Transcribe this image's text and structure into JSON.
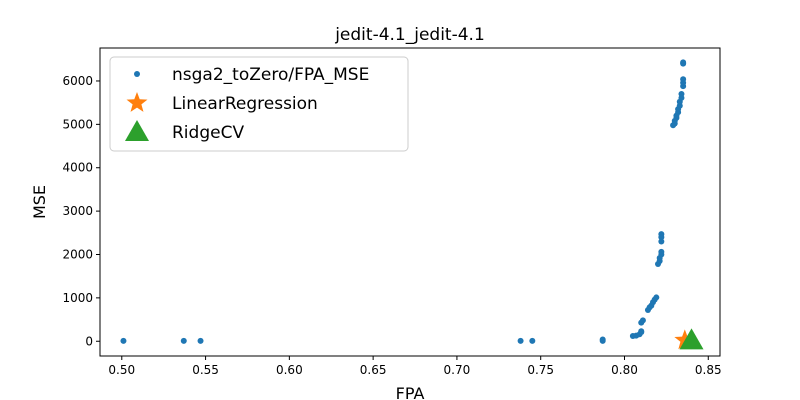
{
  "chart_data": {
    "type": "scatter",
    "title": "jedit-4.1_jedit-4.1",
    "xlabel": "FPA",
    "ylabel": "MSE",
    "xlim": [
      0.487,
      0.857
    ],
    "ylim": [
      -340,
      6760
    ],
    "xticks": [
      0.5,
      0.55,
      0.6,
      0.65,
      0.7,
      0.75,
      0.8,
      0.85
    ],
    "xtick_labels": [
      "0.50",
      "0.55",
      "0.60",
      "0.65",
      "0.70",
      "0.75",
      "0.80",
      "0.85"
    ],
    "yticks": [
      0,
      1000,
      2000,
      3000,
      4000,
      5000,
      6000
    ],
    "ytick_labels": [
      "0",
      "1000",
      "2000",
      "3000",
      "4000",
      "5000",
      "6000"
    ],
    "grid": false,
    "legend_position": "top-left",
    "series": [
      {
        "name": "nsga2_toZero/FPA_MSE",
        "marker": "circle",
        "color": "#1f77b4",
        "points": [
          [
            0.501,
            10
          ],
          [
            0.537,
            10
          ],
          [
            0.547,
            10
          ],
          [
            0.738,
            10
          ],
          [
            0.745,
            10
          ],
          [
            0.787,
            10
          ],
          [
            0.787,
            40
          ],
          [
            0.805,
            120
          ],
          [
            0.807,
            130
          ],
          [
            0.809,
            160
          ],
          [
            0.81,
            210
          ],
          [
            0.81,
            230
          ],
          [
            0.81,
            430
          ],
          [
            0.811,
            480
          ],
          [
            0.814,
            720
          ],
          [
            0.815,
            780
          ],
          [
            0.816,
            820
          ],
          [
            0.817,
            900
          ],
          [
            0.818,
            960
          ],
          [
            0.819,
            1010
          ],
          [
            0.82,
            1780
          ],
          [
            0.821,
            1850
          ],
          [
            0.821,
            1920
          ],
          [
            0.822,
            2000
          ],
          [
            0.822,
            2060
          ],
          [
            0.822,
            2300
          ],
          [
            0.822,
            2400
          ],
          [
            0.822,
            2470
          ],
          [
            0.829,
            4980
          ],
          [
            0.83,
            5020
          ],
          [
            0.83,
            5080
          ],
          [
            0.831,
            5150
          ],
          [
            0.831,
            5200
          ],
          [
            0.832,
            5280
          ],
          [
            0.832,
            5350
          ],
          [
            0.833,
            5430
          ],
          [
            0.833,
            5520
          ],
          [
            0.834,
            5610
          ],
          [
            0.834,
            5700
          ],
          [
            0.835,
            5880
          ],
          [
            0.835,
            5960
          ],
          [
            0.835,
            6040
          ],
          [
            0.835,
            6400
          ],
          [
            0.835,
            6430
          ]
        ]
      },
      {
        "name": "LinearRegression",
        "marker": "star",
        "color": "#ff7f0e",
        "points": [
          [
            0.836,
            20
          ]
        ]
      },
      {
        "name": "RidgeCV",
        "marker": "triangle",
        "color": "#2ca02c",
        "points": [
          [
            0.84,
            20
          ]
        ]
      }
    ]
  }
}
